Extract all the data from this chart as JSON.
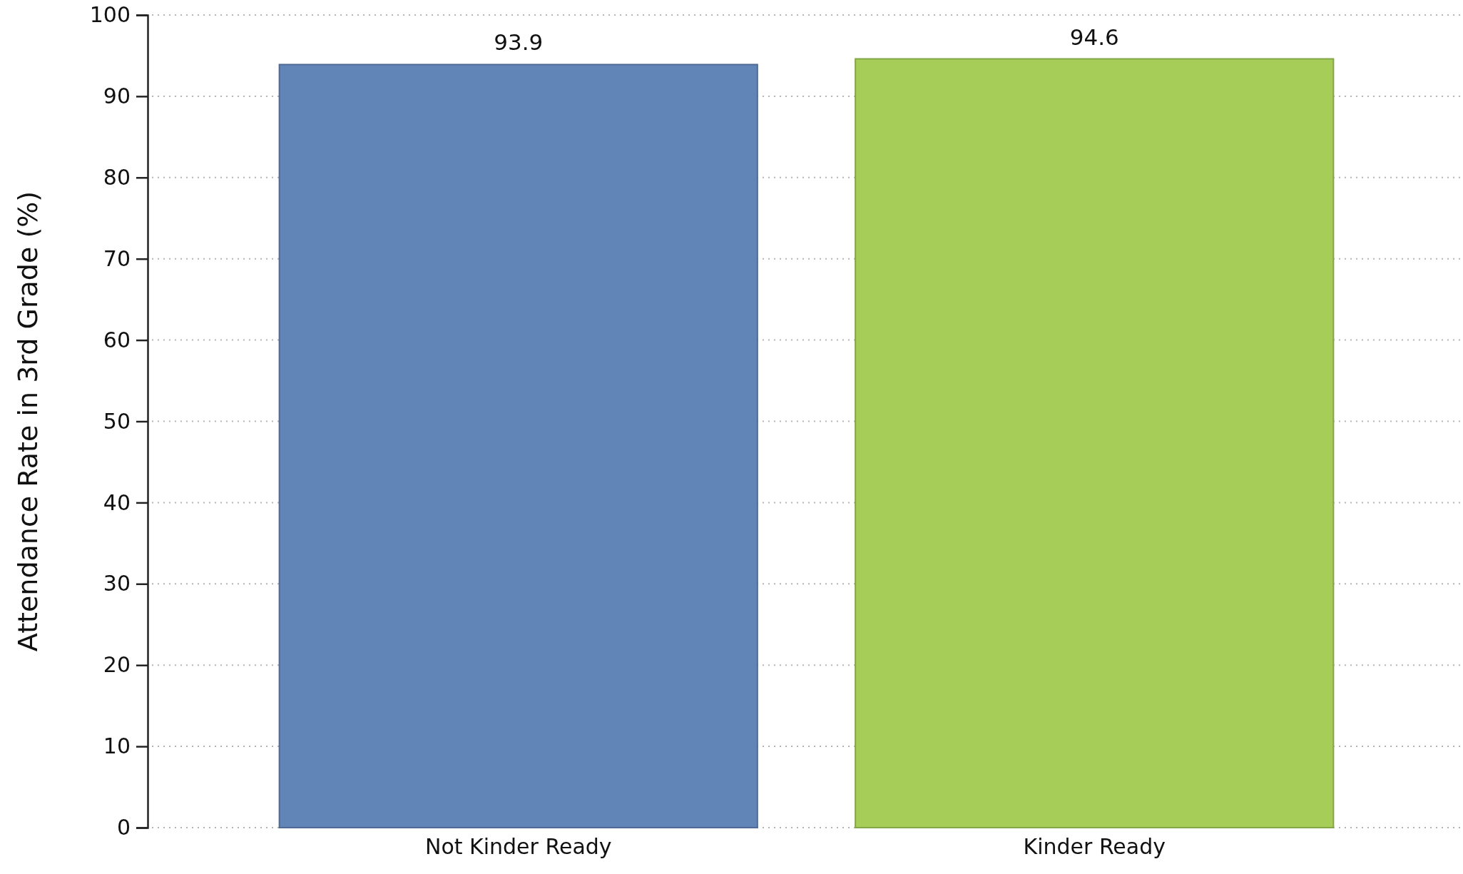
{
  "chart_data": {
    "type": "bar",
    "ylabel": "Attendance Rate in 3rd Grade (%)",
    "categories": [
      "Not Kinder Ready",
      "Kinder Ready"
    ],
    "values": [
      93.9,
      94.6
    ],
    "colors": [
      "#6285b8",
      "#a5cd58"
    ],
    "ylim": [
      0,
      100
    ],
    "yticks": [
      0,
      10,
      20,
      30,
      40,
      50,
      60,
      70,
      80,
      90,
      100
    ],
    "grid": "y",
    "data_labels": true
  }
}
